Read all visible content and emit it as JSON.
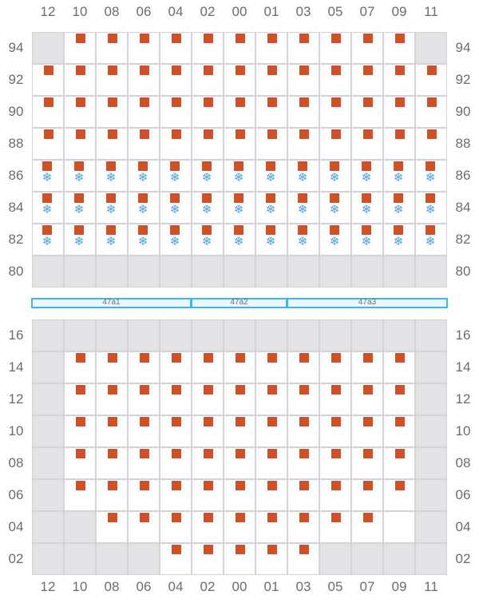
{
  "columns": [
    "12",
    "10",
    "08",
    "06",
    "04",
    "02",
    "00",
    "01",
    "03",
    "05",
    "07",
    "09",
    "11"
  ],
  "colors": {
    "item": "#cf5129",
    "cold": "#4a9de0",
    "unavailable": "#e3e3e6",
    "empty": "#ffffff",
    "grid_line": "#d4d4d8",
    "section_border": "#3bb8f0"
  },
  "legend": {
    "g": "unavailable",
    "e": "empty",
    "s": "item",
    "f": "item with snowflake-icon"
  },
  "top_block": {
    "rows": [
      {
        "label": "94",
        "cells": "gsssssssssssg"
      },
      {
        "label": "92",
        "cells": "sssssssssssss"
      },
      {
        "label": "90",
        "cells": "sssssssssssss"
      },
      {
        "label": "88",
        "cells": "sssssssssssss"
      },
      {
        "label": "86",
        "cells": "fffffffffffff"
      },
      {
        "label": "84",
        "cells": "fffffffffffff"
      },
      {
        "label": "82",
        "cells": "fffffffffffff"
      },
      {
        "label": "80",
        "cells": "ggggggggggggg"
      }
    ]
  },
  "sections": [
    {
      "label": "47a1",
      "span": 5
    },
    {
      "label": "47a2",
      "span": 3
    },
    {
      "label": "47a3",
      "span": 5
    }
  ],
  "bottom_block": {
    "rows": [
      {
        "label": "16",
        "cells": "ggggggggggggg"
      },
      {
        "label": "14",
        "cells": "gsssssssssssg"
      },
      {
        "label": "12",
        "cells": "gsssssssssssg"
      },
      {
        "label": "10",
        "cells": "gsssssssssssg"
      },
      {
        "label": "08",
        "cells": "gsssssssssssg"
      },
      {
        "label": "06",
        "cells": "gsssssssssssg"
      },
      {
        "label": "04",
        "cells": "ggssssssssseg"
      },
      {
        "label": "02",
        "cells": "ggggsssssgggg"
      }
    ]
  }
}
